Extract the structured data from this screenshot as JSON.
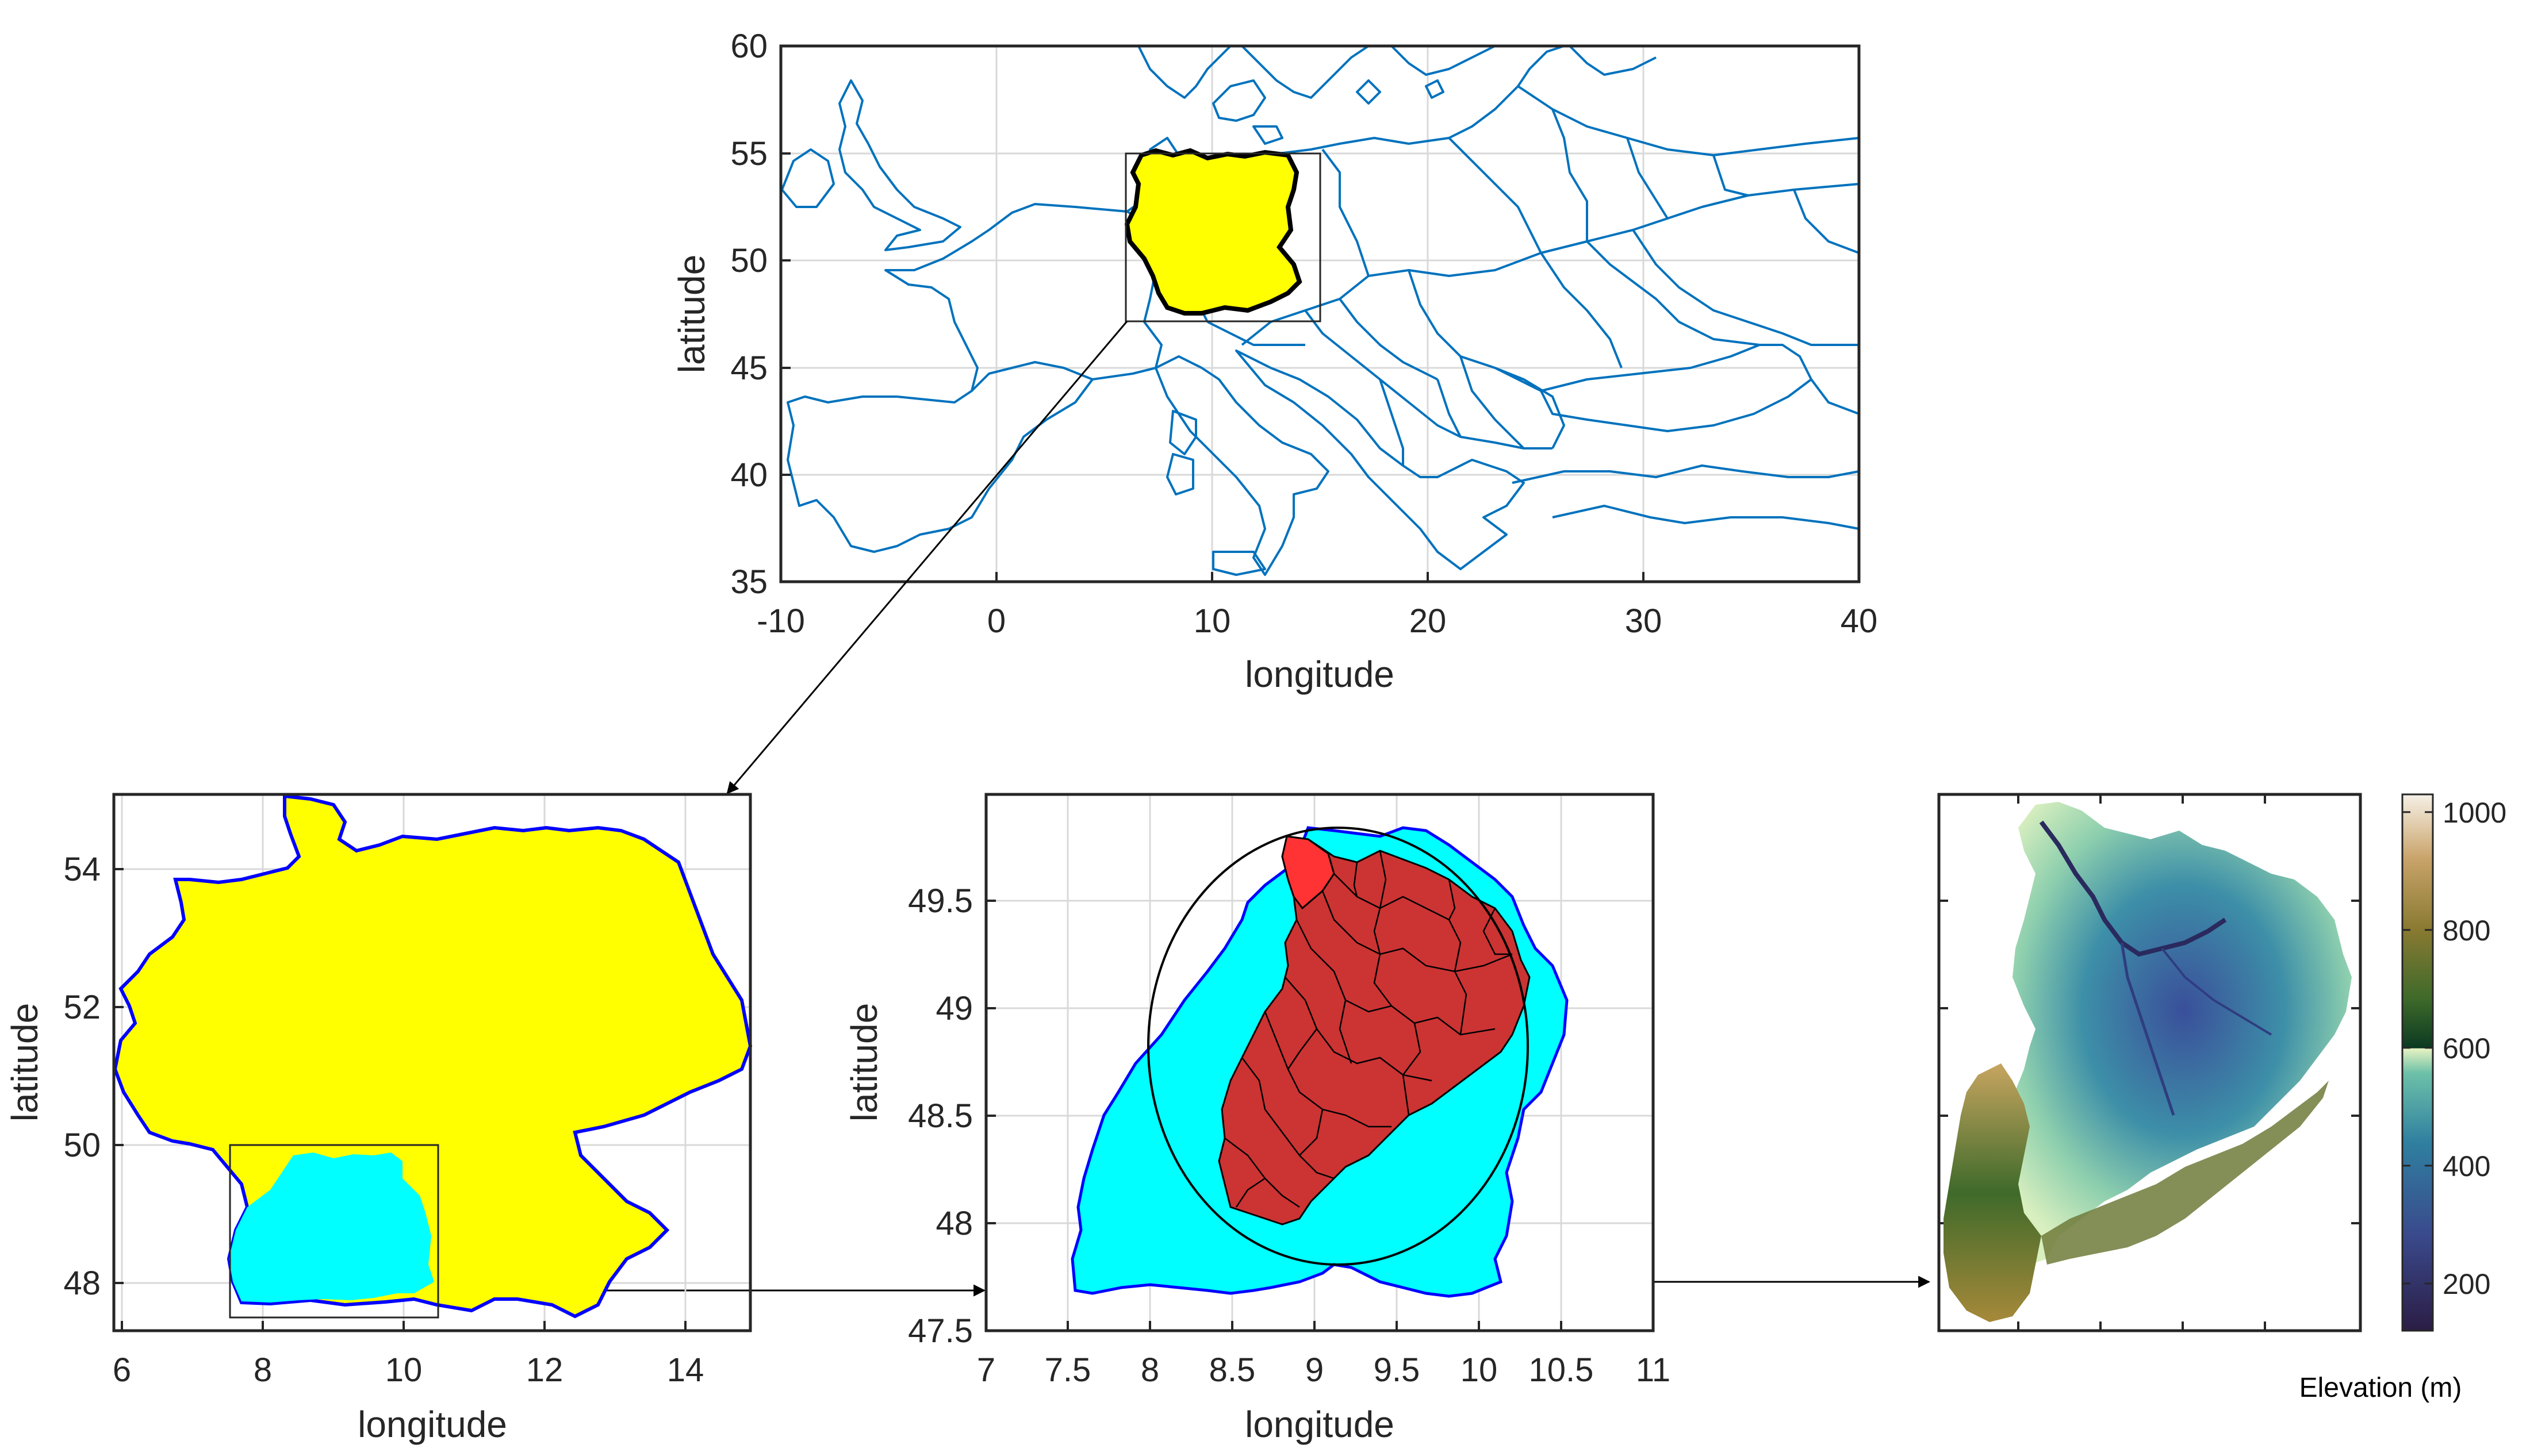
{
  "colors": {
    "coast": "#0072BD",
    "germany_fill": "#FFFF00",
    "germany_outline": "#0000FF",
    "bw_fill": "#00FFFF",
    "catchment_fill": "#CC3333",
    "catchment_highlight": "#FF3333",
    "axis": "#262626"
  },
  "panels": {
    "europe": {
      "x_ticks": [
        "-10",
        "0",
        "10",
        "20",
        "30",
        "40"
      ],
      "y_ticks": [
        "35",
        "40",
        "45",
        "50",
        "55",
        "60"
      ],
      "xlabel": "longitude",
      "ylabel": "latitude"
    },
    "germany": {
      "x_ticks": [
        "6",
        "8",
        "10",
        "12",
        "14"
      ],
      "y_ticks": [
        "48",
        "50",
        "52",
        "54"
      ],
      "xlabel": "longitude",
      "ylabel": "latitude"
    },
    "baden_wuerttemberg": {
      "x_ticks": [
        "7",
        "7.5",
        "8",
        "8.5",
        "9",
        "9.5",
        "10",
        "10.5",
        "11"
      ],
      "y_ticks": [
        "47.5",
        "48",
        "48.5",
        "49",
        "49.5"
      ],
      "xlabel": "longitude",
      "ylabel": "latitude"
    },
    "elevation": {
      "colorbar_ticks": [
        "200",
        "400",
        "600",
        "800",
        "1000"
      ],
      "colorbar_label": "Elevation (m)",
      "colorbar_range": [
        120,
        1030
      ],
      "colormap_break": 600
    }
  }
}
